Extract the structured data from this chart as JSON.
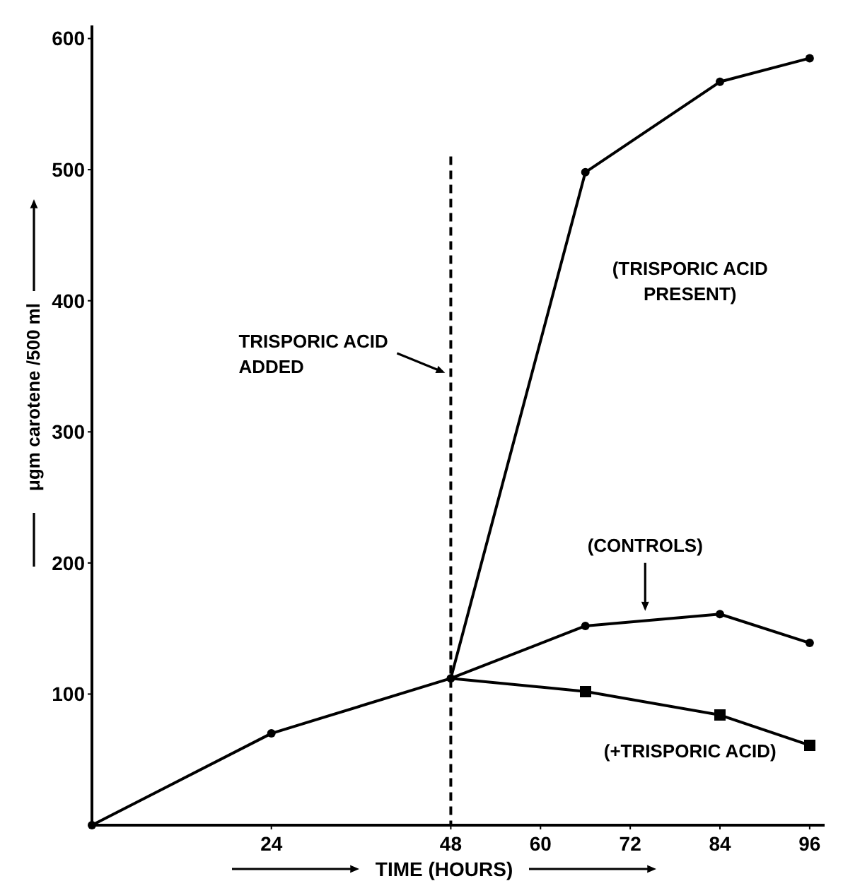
{
  "chart_data": {
    "type": "line",
    "xlabel": "TIME (HOURS)",
    "ylabel": "μgm carotene /500 ml",
    "xlim": [
      0,
      98
    ],
    "xticks": [
      24,
      48,
      60,
      72,
      84,
      96
    ],
    "ylim": [
      0,
      610
    ],
    "yticks": [
      100,
      200,
      300,
      400,
      500,
      600
    ],
    "grid": false,
    "line_style": "solid",
    "series": [
      {
        "color": "#000000",
        "marker": "circle",
        "x": [
          48,
          66,
          84,
          96
        ],
        "values": [
          112,
          498,
          567,
          585
        ]
      },
      {
        "color": "#000000",
        "marker": "circle",
        "x": [
          0,
          24,
          48,
          66,
          84,
          96
        ],
        "values": [
          0,
          70,
          112,
          152,
          161,
          139
        ]
      },
      {
        "color": "#000000",
        "marker": "square",
        "x": [
          48,
          66,
          84,
          96
        ],
        "values": [
          112,
          102,
          84,
          61
        ]
      }
    ],
    "ref_lines": [
      {
        "axis": "x",
        "value": 48,
        "label": "TRISPORIC ACID ADDED",
        "line_style": "dashed",
        "color": "#000000"
      }
    ],
    "annotations": [
      "(TRISPORIC ACID PRESENT)",
      "(CONTROLS)",
      "(+TRISPORIC ACID)"
    ]
  }
}
